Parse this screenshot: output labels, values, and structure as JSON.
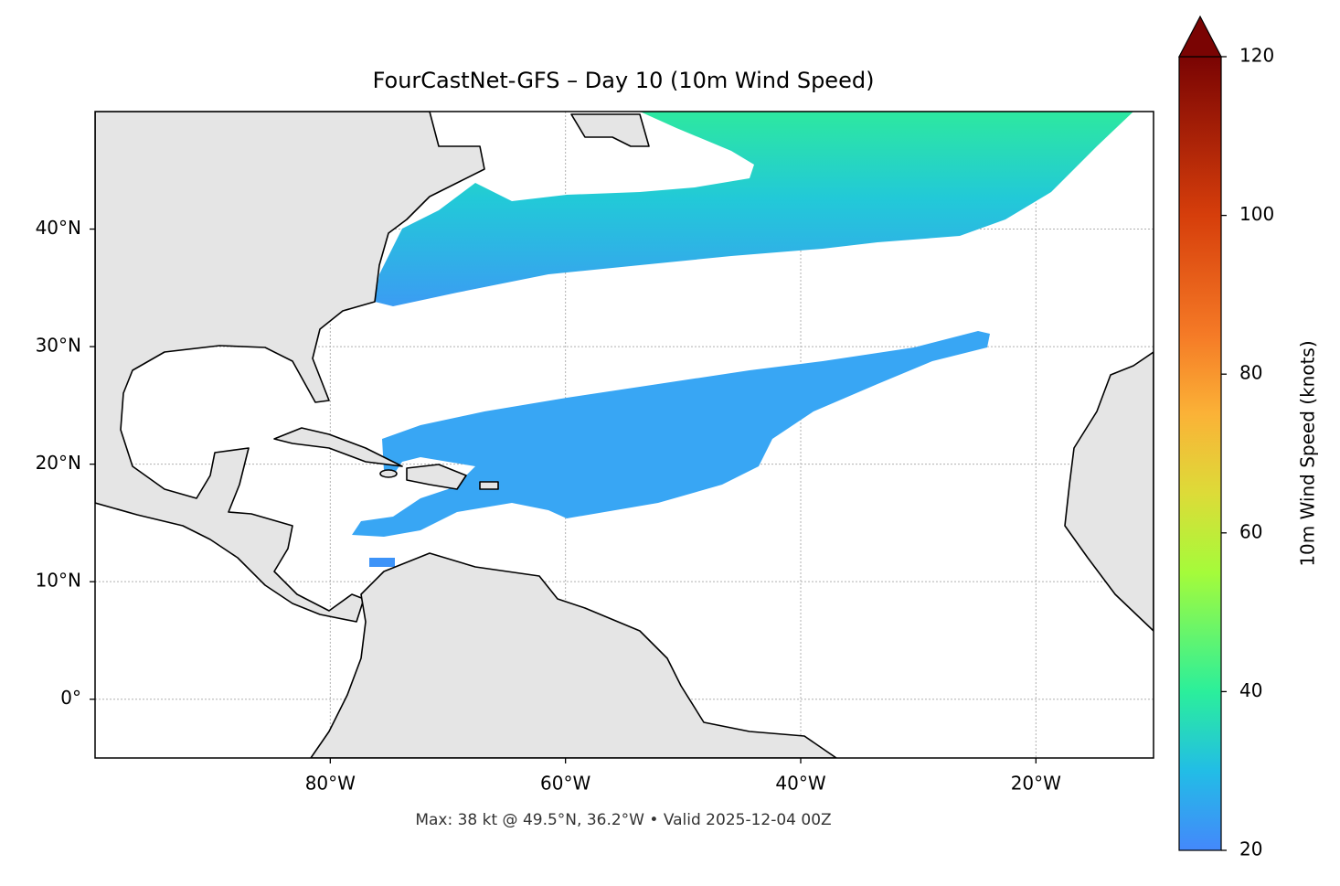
{
  "chart_data": {
    "type": "map",
    "title": "FourCastNet-GFS – Day 10 (10m Wind Speed)",
    "footer": "Max: 38 kt @ 49.5°N, 36.2°W • Valid 2025-12-04 00Z",
    "xlim": [
      -100,
      -10
    ],
    "ylim": [
      -5,
      50
    ],
    "xticks": [
      {
        "value": -80,
        "label": "80°W"
      },
      {
        "value": -60,
        "label": "60°W"
      },
      {
        "value": -40,
        "label": "40°W"
      },
      {
        "value": -20,
        "label": "20°W"
      }
    ],
    "yticks": [
      {
        "value": 0,
        "label": "0°"
      },
      {
        "value": 10,
        "label": "10°N"
      },
      {
        "value": 20,
        "label": "20°N"
      },
      {
        "value": 30,
        "label": "30°N"
      },
      {
        "value": 40,
        "label": "40°N"
      }
    ],
    "grid": true,
    "colorbar": {
      "label": "10m Wind Speed (knots)",
      "lim": [
        20,
        120
      ],
      "ticks": [
        20,
        40,
        60,
        80,
        100,
        120
      ]
    }
  }
}
